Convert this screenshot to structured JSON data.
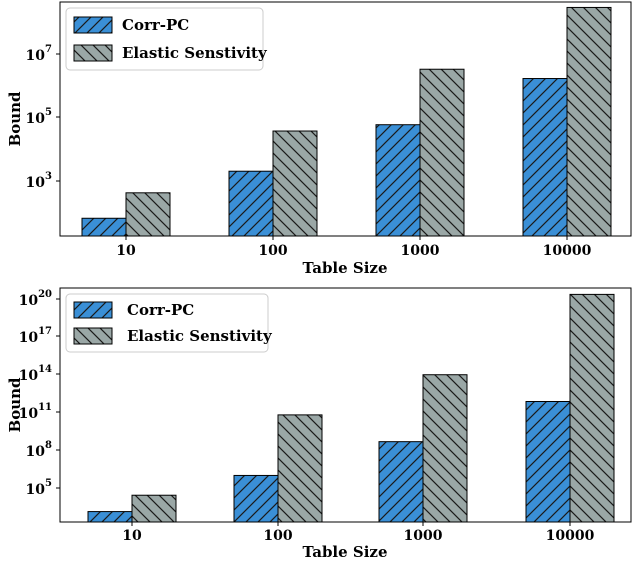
{
  "colors": {
    "corr_pc": "#3a8fd6",
    "elastic": "#9aa7a6",
    "hatch": "#1a1a1a"
  },
  "chart_data": [
    {
      "type": "bar",
      "log_scale": true,
      "categories": [
        "10",
        "100",
        "1000",
        "10000"
      ],
      "series": [
        {
          "name": "Corr-PC",
          "values": [
            30,
            1000,
            32000,
            1000000
          ]
        },
        {
          "name": "Elastic Senstivity",
          "values": [
            200,
            20000,
            2000000,
            200000000
          ]
        }
      ],
      "xlabel": "Table Size",
      "ylabel": "Bound",
      "yticks": [
        {
          "base": "10",
          "exp": "3",
          "value": 1000
        },
        {
          "base": "10",
          "exp": "5",
          "value": 100000
        },
        {
          "base": "10",
          "exp": "7",
          "value": 10000000
        }
      ],
      "ylim": [
        8,
        300000000
      ],
      "legend": "top-left",
      "grid": false
    },
    {
      "type": "bar",
      "log_scale": true,
      "categories": [
        "10",
        "100",
        "1000",
        "10000"
      ],
      "series": [
        {
          "name": "Corr-PC",
          "values": 6000,
          "values_list": [
            6000,
            3000000,
            1000000000,
            1000000000000
          ]
        },
        {
          "name": "Elastic Senstivity",
          "values_list": [
            100000,
            100000000000,
            100000000000000,
            100000000000000000000
          ]
        }
      ],
      "xlabel": "Table Size",
      "ylabel": "Bound",
      "yticks": [
        {
          "base": "10",
          "exp": "5",
          "value": 100000
        },
        {
          "base": "10",
          "exp": "8",
          "value": 100000000
        },
        {
          "base": "10",
          "exp": "11",
          "value": 100000000000
        },
        {
          "base": "10",
          "exp": "14",
          "value": 100000000000000
        },
        {
          "base": "10",
          "exp": "17",
          "value": 100000000000000000
        },
        {
          "base": "10",
          "exp": "20",
          "value": 100000000000000000000
        }
      ],
      "ylim": [
        1000,
        300000000000000000000
      ],
      "legend": "top-left",
      "grid": false
    }
  ]
}
